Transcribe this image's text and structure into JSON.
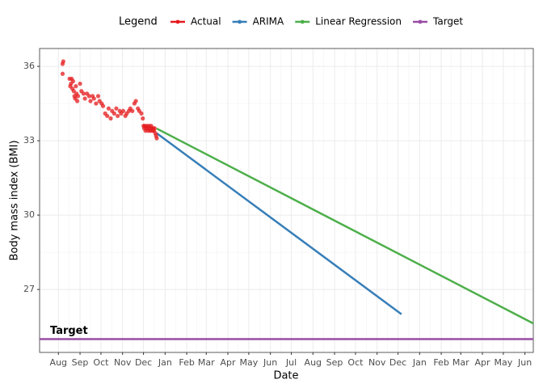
{
  "chart_data": {
    "type": "line",
    "x_label": "Date",
    "y_label": "Body mass index (BMI)",
    "legend_title": "Legend",
    "legend_position": "top",
    "grid": true,
    "xlim": [
      -27,
      681
    ],
    "ylim": [
      24.46,
      36.72
    ],
    "yticks": [
      27,
      30,
      33,
      36
    ],
    "xticks": [
      {
        "value": 0,
        "label": "Aug"
      },
      {
        "value": 31,
        "label": "Sep"
      },
      {
        "value": 61,
        "label": "Oct"
      },
      {
        "value": 92,
        "label": "Nov"
      },
      {
        "value": 122,
        "label": "Dec"
      },
      {
        "value": 153,
        "label": "Jan"
      },
      {
        "value": 184,
        "label": "Feb"
      },
      {
        "value": 212,
        "label": "Mar"
      },
      {
        "value": 243,
        "label": "Apr"
      },
      {
        "value": 273,
        "label": "May"
      },
      {
        "value": 304,
        "label": "Jun"
      },
      {
        "value": 334,
        "label": "Jul"
      },
      {
        "value": 365,
        "label": "Aug"
      },
      {
        "value": 396,
        "label": "Sep"
      },
      {
        "value": 426,
        "label": "Oct"
      },
      {
        "value": 457,
        "label": "Nov"
      },
      {
        "value": 487,
        "label": "Dec"
      },
      {
        "value": 518,
        "label": "Jan"
      },
      {
        "value": 549,
        "label": "Feb"
      },
      {
        "value": 577,
        "label": "Mar"
      },
      {
        "value": 608,
        "label": "Apr"
      },
      {
        "value": 638,
        "label": "May"
      },
      {
        "value": 669,
        "label": "Jun"
      }
    ],
    "target_annotation": "Target",
    "series": [
      {
        "name": "Actual",
        "color": "#e41a1c",
        "mode": "points",
        "x": [
          6,
          7,
          6,
          16,
          17,
          18,
          19,
          20,
          21,
          22,
          23,
          24,
          25,
          26,
          27,
          28,
          31,
          33,
          36,
          38,
          41,
          44,
          46,
          49,
          51,
          54,
          57,
          59,
          62,
          64,
          67,
          70,
          72,
          75,
          77,
          80,
          83,
          85,
          88,
          90,
          93,
          96,
          98,
          101,
          103,
          106,
          109,
          111,
          114,
          116,
          119,
          121,
          122,
          123,
          124,
          125,
          126,
          127,
          128,
          129,
          130,
          131,
          132,
          133,
          134,
          135,
          136,
          137,
          138,
          139,
          140,
          141
        ],
        "values": [
          36.1,
          36.2,
          35.7,
          35.5,
          35.2,
          35.3,
          35.5,
          35.1,
          35.4,
          35.0,
          34.8,
          34.7,
          35.2,
          34.9,
          34.6,
          34.8,
          35.3,
          35.0,
          34.9,
          34.7,
          34.9,
          34.8,
          34.6,
          34.8,
          34.7,
          34.5,
          34.8,
          34.6,
          34.5,
          34.4,
          34.1,
          34.0,
          34.3,
          33.9,
          34.2,
          34.1,
          34.3,
          34.0,
          34.2,
          34.1,
          34.2,
          34.0,
          34.1,
          34.2,
          34.3,
          34.2,
          34.5,
          34.6,
          34.3,
          34.2,
          34.1,
          33.9,
          33.6,
          33.5,
          33.6,
          33.4,
          33.5,
          33.6,
          33.5,
          33.4,
          33.6,
          33.5,
          33.4,
          33.6,
          33.5,
          33.4,
          33.5,
          33.4,
          33.5,
          33.3,
          33.2,
          33.1
        ]
      },
      {
        "name": "ARIMA",
        "color": "#377eb8",
        "mode": "line",
        "x": [
          141,
          492
        ],
        "values": [
          33.3,
          26.0
        ]
      },
      {
        "name": "Linear Regression",
        "color": "#4daf4a",
        "mode": "line",
        "x": [
          141,
          681
        ],
        "values": [
          33.49,
          25.63
        ]
      },
      {
        "name": "Target",
        "color": "#984ea3",
        "mode": "hline",
        "values": [
          25.0
        ]
      }
    ]
  }
}
